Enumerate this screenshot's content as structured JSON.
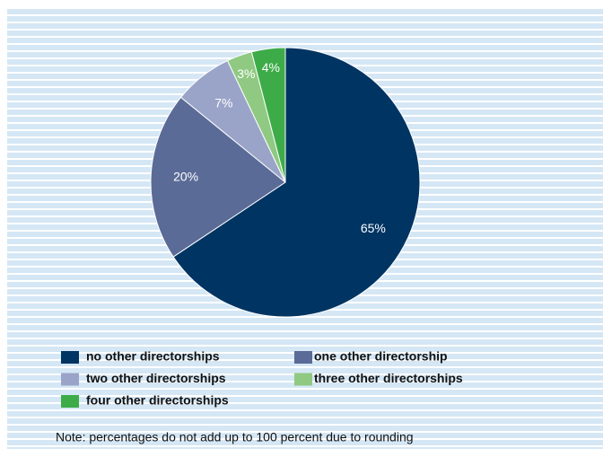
{
  "chart_data": {
    "type": "pie",
    "categories": [
      "no other directorships",
      "one other directorship",
      "two other directorships",
      "three other directorships",
      "four other directorships"
    ],
    "values": [
      65,
      20,
      7,
      3,
      4
    ],
    "value_labels": [
      "65%",
      "20%",
      "7%",
      "3%",
      "4%"
    ],
    "colors": [
      "#003463",
      "#5b6b97",
      "#9aa4c8",
      "#8fc982",
      "#3dac48"
    ],
    "note": "Note: percentages do not add up to 100 percent due to rounding"
  }
}
